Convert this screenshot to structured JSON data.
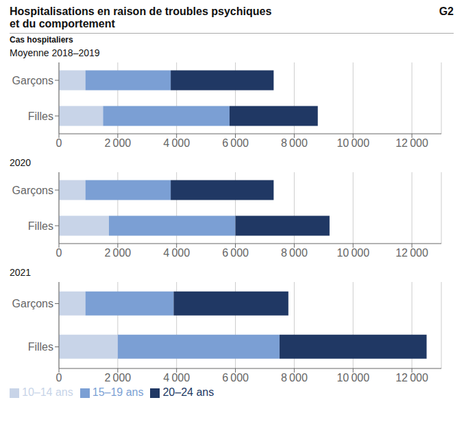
{
  "title": "Hospitalisations en raison de troubles psychiques\net du comportement",
  "subtitle": "Cas hospitaliers",
  "annotations": [
    "G2"
  ],
  "chart_data": [
    {
      "type": "bar",
      "orientation": "horizontal",
      "stacked": true,
      "grid": true,
      "title": "Moyenne 2018–2019",
      "categories": [
        "Garçons",
        "Filles"
      ],
      "series": [
        {
          "name": "10–14 ans",
          "color": "#c8d4e8",
          "values": [
            900,
            1500
          ]
        },
        {
          "name": "15–19 ans",
          "color": "#7b9fd4",
          "values": [
            2900,
            4300
          ]
        },
        {
          "name": "20–24 ans",
          "color": "#203864",
          "values": [
            3500,
            3000
          ]
        }
      ],
      "xlim": [
        0,
        13000
      ],
      "xticks": [
        0,
        {
          "value": 2000,
          "label": "2 000"
        },
        {
          "value": 4000,
          "label": "4 000"
        },
        {
          "value": 6000,
          "label": "6 000"
        },
        {
          "value": 8000,
          "label": "8 000"
        },
        {
          "value": 10000,
          "label": "10 000"
        },
        {
          "value": 12000,
          "label": "12 000"
        }
      ]
    },
    {
      "type": "bar",
      "orientation": "horizontal",
      "stacked": true,
      "grid": true,
      "title": "2020",
      "categories": [
        "Garçons",
        "Filles"
      ],
      "series": [
        {
          "name": "10–14 ans",
          "color": "#c8d4e8",
          "values": [
            900,
            1700
          ]
        },
        {
          "name": "15–19 ans",
          "color": "#7b9fd4",
          "values": [
            2900,
            4300
          ]
        },
        {
          "name": "20–24 ans",
          "color": "#203864",
          "values": [
            3500,
            3200
          ]
        }
      ],
      "xlim": [
        0,
        13000
      ],
      "xticks": [
        0,
        {
          "value": 2000,
          "label": "2 000"
        },
        {
          "value": 4000,
          "label": "4 000"
        },
        {
          "value": 6000,
          "label": "6 000"
        },
        {
          "value": 8000,
          "label": "8 000"
        },
        {
          "value": 10000,
          "label": "10 000"
        },
        {
          "value": 12000,
          "label": "12 000"
        }
      ]
    },
    {
      "type": "bar",
      "orientation": "horizontal",
      "stacked": true,
      "grid": true,
      "legend": "lower left",
      "title": "2021",
      "categories": [
        "Garçons",
        "Filles"
      ],
      "series": [
        {
          "name": "10–14 ans",
          "color": "#c8d4e8",
          "values": [
            900,
            2000
          ]
        },
        {
          "name": "15–19 ans",
          "color": "#7b9fd4",
          "values": [
            3000,
            5500
          ]
        },
        {
          "name": "20–24 ans",
          "color": "#203864",
          "values": [
            3900,
            5000
          ]
        }
      ],
      "xlim": [
        0,
        13000
      ],
      "xticks": [
        0,
        {
          "value": 2000,
          "label": "2 000"
        },
        {
          "value": 4000,
          "label": "4 000"
        },
        {
          "value": 6000,
          "label": "6 000"
        },
        {
          "value": 8000,
          "label": "8 000"
        },
        {
          "value": 10000,
          "label": "10 000"
        },
        {
          "value": 12000,
          "label": "12 000"
        }
      ]
    }
  ]
}
